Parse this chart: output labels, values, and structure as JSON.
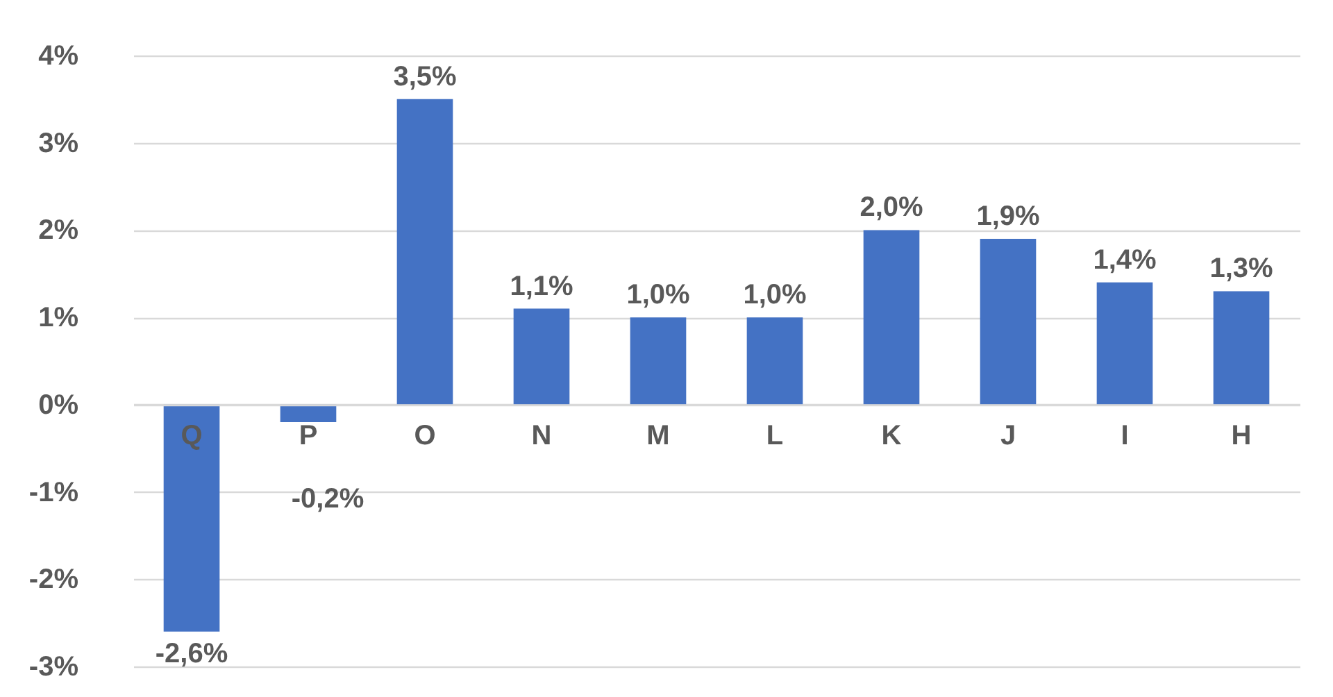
{
  "chart_data": {
    "type": "bar",
    "categories": [
      "Q",
      "P",
      "O",
      "N",
      "M",
      "L",
      "K",
      "J",
      "I",
      "H"
    ],
    "values": [
      -2.6,
      -0.2,
      3.5,
      1.1,
      1.0,
      1.0,
      2.0,
      1.9,
      1.4,
      1.3
    ],
    "value_labels": [
      "-2,6%",
      "-0,2%",
      "3,5%",
      "1,1%",
      "1,0%",
      "1,0%",
      "2,0%",
      "1,9%",
      "1,4%",
      "1,3%"
    ],
    "color": "#4472c4",
    "ylim": [
      -3,
      4
    ],
    "yticks": [
      {
        "value": -3,
        "label": "-3%"
      },
      {
        "value": -2,
        "label": "-2%"
      },
      {
        "value": -1,
        "label": "-1%"
      },
      {
        "value": 0,
        "label": "0%"
      },
      {
        "value": 1,
        "label": "1%"
      },
      {
        "value": 2,
        "label": "2%"
      },
      {
        "value": 3,
        "label": "3%"
      },
      {
        "value": 4,
        "label": "4%"
      }
    ],
    "grid": "y"
  }
}
